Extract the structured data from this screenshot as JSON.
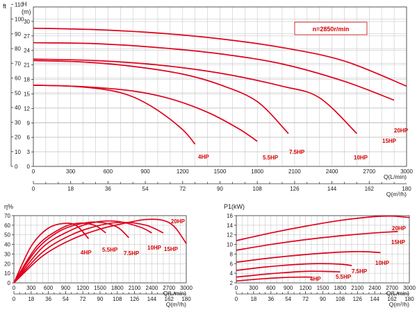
{
  "chart_data": [
    {
      "id": "head",
      "type": "line",
      "annotation": "n=2850r/min",
      "xlabel": "Q(L/min)",
      "ylabel": "H",
      "ylabel_alt": "ft",
      "ylabel_unit": "(m)",
      "xlim": [
        0,
        3000
      ],
      "ylim": [
        0,
        33
      ],
      "x_ticks": [
        0,
        300,
        600,
        900,
        1200,
        1500,
        1800,
        2100,
        2400,
        2700,
        3000
      ],
      "y_ticks": [
        0,
        3,
        6,
        9,
        12,
        15,
        18,
        21,
        24,
        27,
        30
      ],
      "y_ticks_ft": [
        0,
        10,
        20,
        30,
        40,
        50,
        60,
        70,
        80,
        90,
        100,
        110
      ],
      "y_ft_factor": 3.2808,
      "x2label": "Q(m³/h)",
      "x2_ticks": [
        0,
        18,
        36,
        54,
        72,
        90,
        108,
        126,
        144,
        162,
        180
      ],
      "x2_factor": 16.6667,
      "series": [
        {
          "name": "4HP",
          "x": [
            0,
            300,
            600,
            800,
            1000,
            1200,
            1300
          ],
          "y": [
            16.8,
            16.6,
            15.8,
            14.4,
            11.6,
            7.6,
            4.6
          ]
        },
        {
          "name": "5.5HP",
          "x": [
            0,
            400,
            800,
            1100,
            1400,
            1650,
            1800
          ],
          "y": [
            16.8,
            16.5,
            15.6,
            14.0,
            11.2,
            7.8,
            5.2
          ]
        },
        {
          "name": "7.5HP",
          "x": [
            0,
            400,
            800,
            1200,
            1500,
            1800,
            2050
          ],
          "y": [
            21.9,
            21.6,
            20.7,
            19.1,
            16.9,
            13.4,
            6.8
          ]
        },
        {
          "name": "10HP",
          "x": [
            0,
            500,
            1000,
            1500,
            2000,
            2300,
            2600
          ],
          "y": [
            22.2,
            21.9,
            21.0,
            19.3,
            16.6,
            14.2,
            6.8
          ]
        },
        {
          "name": "15HP",
          "x": [
            0,
            500,
            1000,
            1500,
            2000,
            2500,
            2900
          ],
          "y": [
            25.6,
            25.4,
            24.6,
            23.3,
            21.2,
            17.6,
            13.7
          ]
        },
        {
          "name": "20HP",
          "x": [
            0,
            500,
            1000,
            1500,
            2000,
            2500,
            3000
          ],
          "y": [
            28.6,
            28.3,
            27.6,
            26.4,
            24.6,
            21.8,
            16.6
          ]
        }
      ]
    },
    {
      "id": "efficiency",
      "type": "line",
      "ylabel": "η%",
      "xlabel": "Q(L/min)",
      "xlim": [
        0,
        3000
      ],
      "ylim": [
        0,
        70
      ],
      "x_ticks": [
        0,
        300,
        600,
        900,
        1200,
        1500,
        1800,
        2100,
        2400,
        2700,
        3000
      ],
      "y_ticks": [
        0,
        10,
        20,
        30,
        40,
        50,
        60,
        70
      ],
      "x2label": "Q(m³/h)",
      "x2_ticks": [
        0,
        18,
        36,
        54,
        72,
        90,
        108,
        126,
        144,
        162,
        180
      ],
      "x2_factor": 16.6667,
      "series": [
        {
          "name": "4HP",
          "x": [
            0,
            300,
            600,
            900,
            1100,
            1300
          ],
          "y": [
            0,
            38,
            57,
            62,
            59,
            46
          ]
        },
        {
          "name": "5.5HP",
          "x": [
            0,
            400,
            800,
            1100,
            1400,
            1600
          ],
          "y": [
            0,
            38,
            56,
            62,
            60,
            52
          ]
        },
        {
          "name": "7.5HP",
          "x": [
            0,
            400,
            800,
            1200,
            1500,
            1800,
            2000
          ],
          "y": [
            0,
            35,
            54,
            62,
            63,
            58,
            47
          ]
        },
        {
          "name": "10HP",
          "x": [
            0,
            500,
            1000,
            1400,
            1800,
            2200,
            2400
          ],
          "y": [
            0,
            37,
            55,
            63,
            64,
            58,
            52
          ]
        },
        {
          "name": "15HP",
          "x": [
            0,
            500,
            1000,
            1500,
            1900,
            2300,
            2600
          ],
          "y": [
            0,
            32,
            50,
            60,
            63,
            60,
            52
          ]
        },
        {
          "name": "20HP",
          "x": [
            0,
            500,
            1000,
            1500,
            2000,
            2300,
            2600,
            2800,
            3000
          ],
          "y": [
            0,
            28,
            45,
            56,
            63,
            66,
            65,
            58,
            41
          ]
        }
      ]
    },
    {
      "id": "power",
      "type": "line",
      "ylabel": "P1(kW)",
      "xlabel": "Q(L/min)",
      "xlim": [
        0,
        3000
      ],
      "ylim": [
        2,
        16
      ],
      "x_ticks": [
        0,
        300,
        600,
        900,
        1200,
        1500,
        1800,
        2100,
        2400,
        2700,
        3000
      ],
      "y_ticks": [
        2,
        4,
        6,
        8,
        10,
        12,
        14,
        16
      ],
      "x2label": "Q(m³/h)",
      "x2_ticks": [
        0,
        18,
        36,
        54,
        72,
        90,
        108,
        126,
        144,
        162,
        180
      ],
      "x2_factor": 16.6667,
      "series": [
        {
          "name": "4HP",
          "x": [
            0,
            400,
            800,
            1100,
            1300
          ],
          "y": [
            2.4,
            2.8,
            3.1,
            3.2,
            3.2
          ]
        },
        {
          "name": "5.5HP",
          "x": [
            0,
            400,
            800,
            1200,
            1500,
            1800
          ],
          "y": [
            3.2,
            3.7,
            4.1,
            4.4,
            4.4,
            4.3
          ]
        },
        {
          "name": "7.5HP",
          "x": [
            0,
            500,
            1000,
            1400,
            1800,
            2000
          ],
          "y": [
            4.6,
            5.3,
            5.8,
            6.0,
            5.9,
            5.6
          ]
        },
        {
          "name": "10HP",
          "x": [
            0,
            600,
            1200,
            1800,
            2200,
            2500
          ],
          "y": [
            6.3,
            7.2,
            7.9,
            8.4,
            8.5,
            8.3
          ]
        },
        {
          "name": "15HP",
          "x": [
            0,
            600,
            1200,
            1800,
            2400,
            2800
          ],
          "y": [
            8.8,
            10.0,
            11.0,
            11.8,
            12.4,
            12.7
          ]
        },
        {
          "name": "20HP",
          "x": [
            0,
            600,
            1200,
            1800,
            2400,
            2700,
            3000
          ],
          "y": [
            10.8,
            12.4,
            13.8,
            15.0,
            15.8,
            15.9,
            15.6
          ]
        }
      ]
    }
  ]
}
